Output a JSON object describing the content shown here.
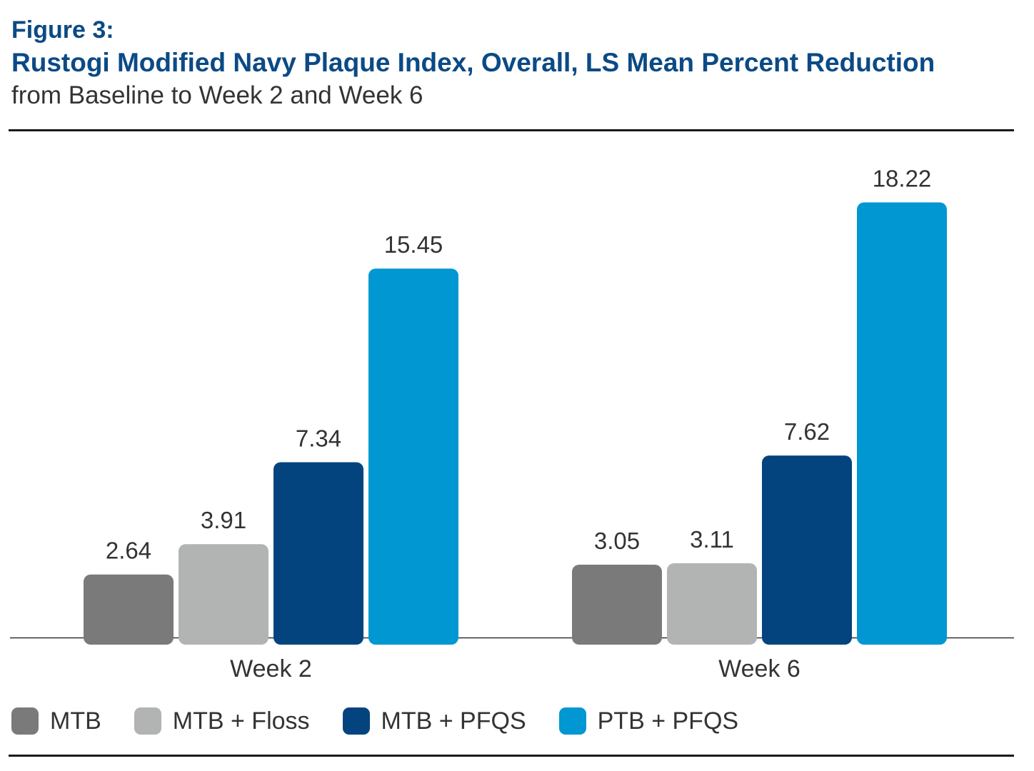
{
  "header": {
    "figure_label": "Figure 3:",
    "title": "Rustogi Modified Navy Plaque Index, Overall, LS Mean Percent Reduction",
    "subtitle": "from Baseline to Week 2 and Week 6"
  },
  "chart_data": {
    "type": "bar",
    "title": "Rustogi Modified Navy Plaque Index, Overall, LS Mean Percent Reduction",
    "subtitle": "from Baseline to Week 2 and Week 6",
    "categories": [
      "Week 2",
      "Week 6"
    ],
    "series": [
      {
        "name": "MTB",
        "color": "#7a7a7a",
        "values": [
          2.64,
          3.05
        ],
        "labels": [
          "2.64",
          "3.05"
        ]
      },
      {
        "name": "MTB + Floss",
        "color": "#b2b3b3",
        "values": [
          3.91,
          3.11
        ],
        "labels": [
          "3.91",
          "3.11"
        ]
      },
      {
        "name": "MTB + PFQS",
        "color": "#03447e",
        "values": [
          7.34,
          7.62
        ],
        "labels": [
          "7.34",
          "7.62"
        ]
      },
      {
        "name": "PTB + PFQS",
        "color": "#0097d3",
        "values": [
          15.45,
          18.22
        ],
        "labels": [
          "15.45",
          "18.22"
        ]
      }
    ],
    "xlabel": "",
    "ylabel": "",
    "ylim": [
      0,
      20
    ],
    "grid": false,
    "legend_position": "bottom-left"
  }
}
